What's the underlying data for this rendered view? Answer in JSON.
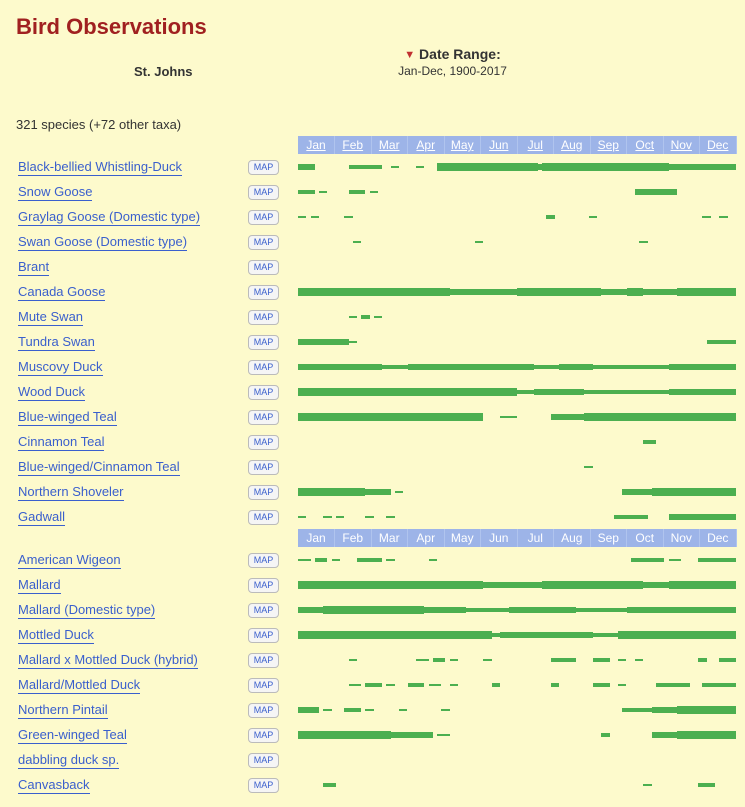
{
  "title": "Bird Observations",
  "date_range_label": "Date Range:",
  "date_range_value": "Jan-Dec, 1900-2017",
  "location": "St. Johns",
  "summary": "321 species (+72 other taxa)",
  "map_button_label": "MAP",
  "months": [
    "Jan",
    "Feb",
    "Mar",
    "Apr",
    "May",
    "Jun",
    "Jul",
    "Aug",
    "Sep",
    "Oct",
    "Nov",
    "Dec"
  ],
  "colors": {
    "page_bg": "#fdfacc",
    "title": "#a02020",
    "link": "#3a5fcd",
    "month_header_bg": "#9db4e8",
    "month_header_fg": "#ffffff",
    "bar_color": "#4CAF50"
  },
  "bar_geom": {
    "months_header_before_index": [
      0,
      15
    ],
    "month_count": 12
  },
  "species": [
    {
      "name": "Black-bellied Whistling-Duck",
      "segments": [
        [
          0,
          4,
          3
        ],
        [
          12,
          8,
          2
        ],
        [
          22,
          2,
          1
        ],
        [
          28,
          2,
          1
        ],
        [
          33,
          71,
          3
        ],
        [
          33,
          24,
          4
        ],
        [
          58,
          30,
          4
        ]
      ]
    },
    {
      "name": "Snow Goose",
      "segments": [
        [
          0,
          4,
          2
        ],
        [
          5,
          2,
          1
        ],
        [
          12,
          4,
          2
        ],
        [
          17,
          2,
          1
        ],
        [
          80,
          10,
          3
        ]
      ]
    },
    {
      "name": "Graylag Goose (Domestic type)",
      "segments": [
        [
          0,
          2,
          1
        ],
        [
          3,
          2,
          1
        ],
        [
          11,
          2,
          1
        ],
        [
          59,
          2,
          2
        ],
        [
          69,
          2,
          1
        ],
        [
          96,
          2,
          1
        ],
        [
          100,
          2,
          1
        ]
      ]
    },
    {
      "name": "Swan Goose (Domestic type)",
      "segments": [
        [
          13,
          2,
          1
        ],
        [
          42,
          2,
          1
        ],
        [
          81,
          2,
          1
        ]
      ]
    },
    {
      "name": "Brant",
      "segments": []
    },
    {
      "name": "Canada Goose",
      "segments": [
        [
          0,
          104,
          3
        ],
        [
          0,
          36,
          4
        ],
        [
          52,
          20,
          4
        ],
        [
          78,
          4,
          4
        ],
        [
          90,
          14,
          4
        ]
      ]
    },
    {
      "name": "Mute Swan",
      "segments": [
        [
          12,
          2,
          1
        ],
        [
          15,
          2,
          2
        ],
        [
          18,
          2,
          1
        ]
      ]
    },
    {
      "name": "Tundra Swan",
      "segments": [
        [
          0,
          12,
          3
        ],
        [
          12,
          2,
          1
        ],
        [
          97,
          7,
          2
        ]
      ]
    },
    {
      "name": "Muscovy Duck",
      "segments": [
        [
          0,
          104,
          2
        ],
        [
          0,
          20,
          3
        ],
        [
          26,
          30,
          3
        ],
        [
          62,
          8,
          3
        ],
        [
          88,
          16,
          3
        ]
      ]
    },
    {
      "name": "Wood Duck",
      "segments": [
        [
          0,
          104,
          2
        ],
        [
          0,
          52,
          4
        ],
        [
          56,
          12,
          3
        ],
        [
          88,
          16,
          3
        ]
      ]
    },
    {
      "name": "Blue-winged Teal",
      "segments": [
        [
          0,
          44,
          4
        ],
        [
          48,
          4,
          1
        ],
        [
          60,
          44,
          3
        ],
        [
          68,
          36,
          4
        ]
      ]
    },
    {
      "name": "Cinnamon Teal",
      "segments": [
        [
          82,
          3,
          2
        ]
      ]
    },
    {
      "name": "Blue-winged/Cinnamon Teal",
      "segments": [
        [
          68,
          2,
          1
        ]
      ]
    },
    {
      "name": "Northern Shoveler",
      "segments": [
        [
          0,
          22,
          3
        ],
        [
          0,
          16,
          4
        ],
        [
          23,
          2,
          1
        ],
        [
          77,
          27,
          3
        ],
        [
          84,
          20,
          4
        ]
      ]
    },
    {
      "name": "Gadwall",
      "segments": [
        [
          0,
          2,
          1
        ],
        [
          6,
          2,
          1
        ],
        [
          9,
          2,
          1
        ],
        [
          16,
          2,
          1
        ],
        [
          21,
          2,
          1
        ],
        [
          75,
          8,
          2
        ],
        [
          88,
          16,
          3
        ]
      ]
    },
    {
      "name": "American Wigeon",
      "segments": [
        [
          0,
          3,
          1
        ],
        [
          4,
          3,
          2
        ],
        [
          8,
          2,
          1
        ],
        [
          14,
          6,
          2
        ],
        [
          21,
          2,
          1
        ],
        [
          31,
          2,
          1
        ],
        [
          79,
          8,
          2
        ],
        [
          88,
          3,
          1
        ],
        [
          95,
          9,
          2
        ]
      ]
    },
    {
      "name": "Mallard",
      "segments": [
        [
          0,
          104,
          3
        ],
        [
          0,
          44,
          4
        ],
        [
          58,
          24,
          4
        ],
        [
          88,
          16,
          4
        ]
      ]
    },
    {
      "name": "Mallard (Domestic type)",
      "segments": [
        [
          0,
          104,
          2
        ],
        [
          0,
          40,
          3
        ],
        [
          6,
          24,
          4
        ],
        [
          50,
          16,
          3
        ],
        [
          78,
          26,
          3
        ]
      ]
    },
    {
      "name": "Mottled Duck",
      "segments": [
        [
          0,
          104,
          2
        ],
        [
          0,
          46,
          4
        ],
        [
          48,
          22,
          3
        ],
        [
          76,
          28,
          4
        ]
      ]
    },
    {
      "name": "Mallard x Mottled Duck (hybrid)",
      "segments": [
        [
          12,
          2,
          1
        ],
        [
          28,
          3,
          1
        ],
        [
          32,
          3,
          2
        ],
        [
          36,
          2,
          1
        ],
        [
          44,
          2,
          1
        ],
        [
          60,
          6,
          2
        ],
        [
          70,
          4,
          2
        ],
        [
          76,
          2,
          1
        ],
        [
          80,
          2,
          1
        ],
        [
          95,
          2,
          2
        ],
        [
          100,
          4,
          2
        ]
      ]
    },
    {
      "name": "Mallard/Mottled Duck",
      "segments": [
        [
          12,
          3,
          1
        ],
        [
          16,
          4,
          2
        ],
        [
          21,
          2,
          1
        ],
        [
          26,
          4,
          2
        ],
        [
          31,
          3,
          1
        ],
        [
          36,
          2,
          1
        ],
        [
          46,
          2,
          2
        ],
        [
          60,
          2,
          2
        ],
        [
          70,
          4,
          2
        ],
        [
          76,
          2,
          1
        ],
        [
          85,
          8,
          2
        ],
        [
          96,
          8,
          2
        ]
      ]
    },
    {
      "name": "Northern Pintail",
      "segments": [
        [
          0,
          5,
          3
        ],
        [
          6,
          2,
          1
        ],
        [
          11,
          4,
          2
        ],
        [
          16,
          2,
          1
        ],
        [
          24,
          2,
          1
        ],
        [
          34,
          2,
          1
        ],
        [
          77,
          27,
          2
        ],
        [
          84,
          20,
          3
        ],
        [
          90,
          14,
          4
        ]
      ]
    },
    {
      "name": "Green-winged Teal",
      "segments": [
        [
          0,
          32,
          3
        ],
        [
          0,
          22,
          4
        ],
        [
          33,
          3,
          1
        ],
        [
          72,
          2,
          2
        ],
        [
          84,
          20,
          3
        ],
        [
          90,
          14,
          4
        ]
      ]
    },
    {
      "name": "dabbling duck sp.",
      "segments": []
    },
    {
      "name": "Canvasback",
      "segments": [
        [
          6,
          3,
          2
        ],
        [
          82,
          2,
          1
        ],
        [
          95,
          4,
          2
        ]
      ]
    }
  ]
}
